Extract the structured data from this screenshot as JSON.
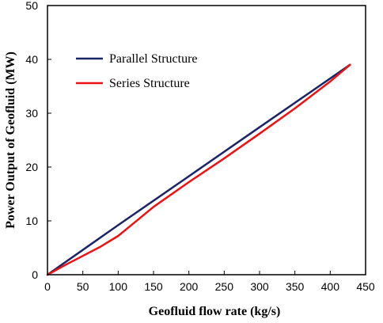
{
  "chart_data": {
    "type": "line",
    "title": "",
    "xlabel": "Geofluid  flow rate (kg/s)",
    "ylabel": "Power Output  of Geofluid (MW)",
    "xlim": [
      0,
      450
    ],
    "ylim": [
      0,
      50
    ],
    "xticks": [
      0,
      50,
      100,
      150,
      200,
      250,
      300,
      350,
      400,
      450
    ],
    "yticks": [
      0,
      10,
      20,
      30,
      40,
      50
    ],
    "grid": false,
    "legend_position": "top-left",
    "series": [
      {
        "name": "Parallel Structure",
        "color": "#1a2466",
        "x": [
          0,
          100,
          200,
          300,
          428
        ],
        "y": [
          0,
          9.2,
          18.3,
          27.4,
          39
        ]
      },
      {
        "name": "Series Structure",
        "color": "#ee1111",
        "x": [
          0,
          25,
          50,
          75,
          100,
          125,
          150,
          200,
          250,
          300,
          350,
          400,
          428
        ],
        "y": [
          0,
          1.8,
          3.5,
          5.2,
          7.2,
          9.9,
          12.6,
          17.2,
          21.6,
          26.2,
          30.9,
          35.9,
          39
        ]
      }
    ]
  }
}
